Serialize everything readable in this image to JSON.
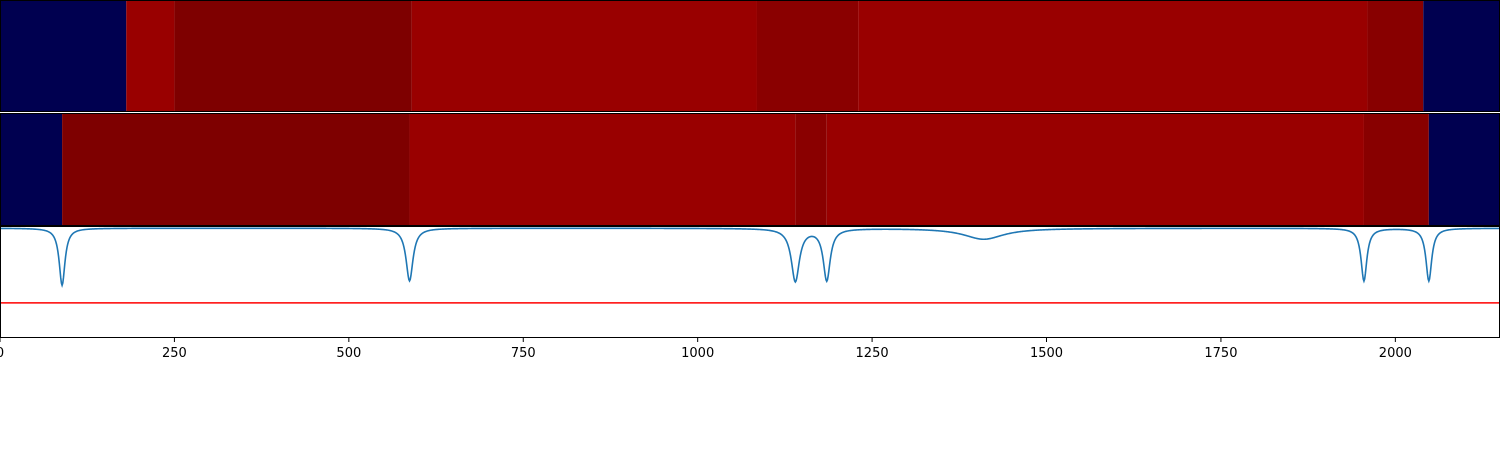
{
  "chart_data": [
    {
      "type": "heatmap",
      "panel": "track-1",
      "segments": [
        {
          "start": 0,
          "end": 181,
          "level": "low",
          "color": "#000050"
        },
        {
          "start": 181,
          "end": 250,
          "level": "high",
          "color": "#990000"
        },
        {
          "start": 250,
          "end": 590,
          "level": "mid",
          "color": "#7e0000"
        },
        {
          "start": 590,
          "end": 1085,
          "level": "high",
          "color": "#990000"
        },
        {
          "start": 1085,
          "end": 1230,
          "level": "mid-high",
          "color": "#8a0000"
        },
        {
          "start": 1230,
          "end": 1960,
          "level": "high",
          "color": "#990000"
        },
        {
          "start": 1960,
          "end": 2040,
          "level": "mid-high",
          "color": "#880000"
        },
        {
          "start": 2040,
          "end": 2150,
          "level": "low",
          "color": "#000050"
        }
      ]
    },
    {
      "type": "heatmap",
      "panel": "track-2",
      "segments": [
        {
          "start": 0,
          "end": 89,
          "level": "low",
          "color": "#000050"
        },
        {
          "start": 89,
          "end": 587,
          "level": "mid",
          "color": "#7e0000"
        },
        {
          "start": 587,
          "end": 1140,
          "level": "high",
          "color": "#990000"
        },
        {
          "start": 1140,
          "end": 1185,
          "level": "mid-high",
          "color": "#8a0000"
        },
        {
          "start": 1185,
          "end": 1955,
          "level": "high",
          "color": "#990000"
        },
        {
          "start": 1955,
          "end": 2048,
          "level": "mid-high",
          "color": "#880000"
        },
        {
          "start": 2048,
          "end": 2150,
          "level": "low",
          "color": "#000050"
        }
      ]
    },
    {
      "type": "line",
      "panel": "signal",
      "xlim": [
        0,
        2150
      ],
      "ylim": [
        -1.0,
        0.02
      ],
      "baseline_value": 0,
      "threshold": {
        "value": -0.68,
        "color": "#ff0000"
      },
      "line_color": "#1f77b4",
      "dips": [
        {
          "center": 89,
          "depth": -0.52,
          "width": 5
        },
        {
          "center": 587,
          "depth": -0.48,
          "width": 6
        },
        {
          "center": 1140,
          "depth": -0.48,
          "width": 7
        },
        {
          "center": 1185,
          "depth": -0.47,
          "width": 6
        },
        {
          "center": 1410,
          "depth": -0.1,
          "width": 35
        },
        {
          "center": 1955,
          "depth": -0.48,
          "width": 5
        },
        {
          "center": 2048,
          "depth": -0.48,
          "width": 5
        }
      ],
      "x_ticks": [
        0,
        250,
        500,
        750,
        1000,
        1250,
        1500,
        1750,
        2000
      ],
      "x_tick_labels": [
        "0",
        "250",
        "500",
        "750",
        "1000",
        "1250",
        "1500",
        "1750",
        "2000"
      ]
    }
  ]
}
